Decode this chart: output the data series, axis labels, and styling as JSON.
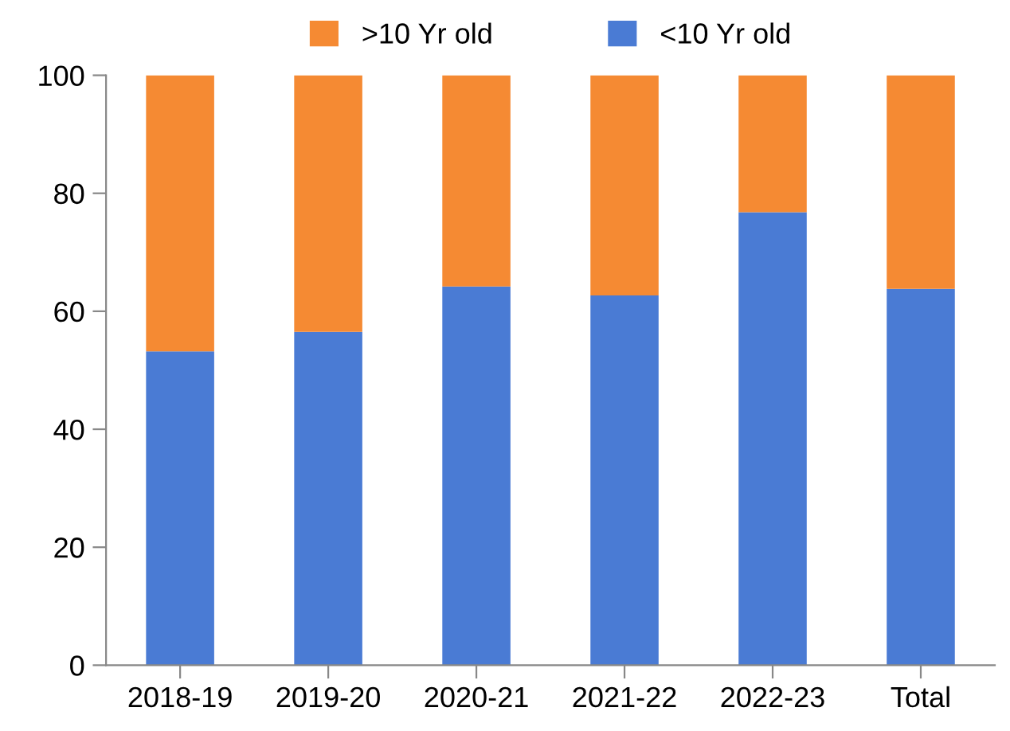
{
  "chart_data": {
    "type": "bar",
    "stacked": true,
    "categories": [
      "2018-19",
      "2019-20",
      "2020-21",
      "2021-22",
      "2022-23",
      "Total"
    ],
    "series": [
      {
        "name": "<10 Yr old",
        "color": "#4a7bd4",
        "values": [
          53.2,
          56.5,
          64.2,
          62.7,
          76.8,
          63.8
        ]
      },
      {
        "name": ">10 Yr old",
        "color": "#f58a33",
        "values": [
          46.8,
          43.5,
          35.8,
          37.3,
          23.2,
          36.2
        ]
      }
    ],
    "ylim": [
      0,
      100
    ],
    "yticks": [
      0,
      20,
      40,
      60,
      80,
      100
    ],
    "grid": false,
    "legend": "top"
  }
}
